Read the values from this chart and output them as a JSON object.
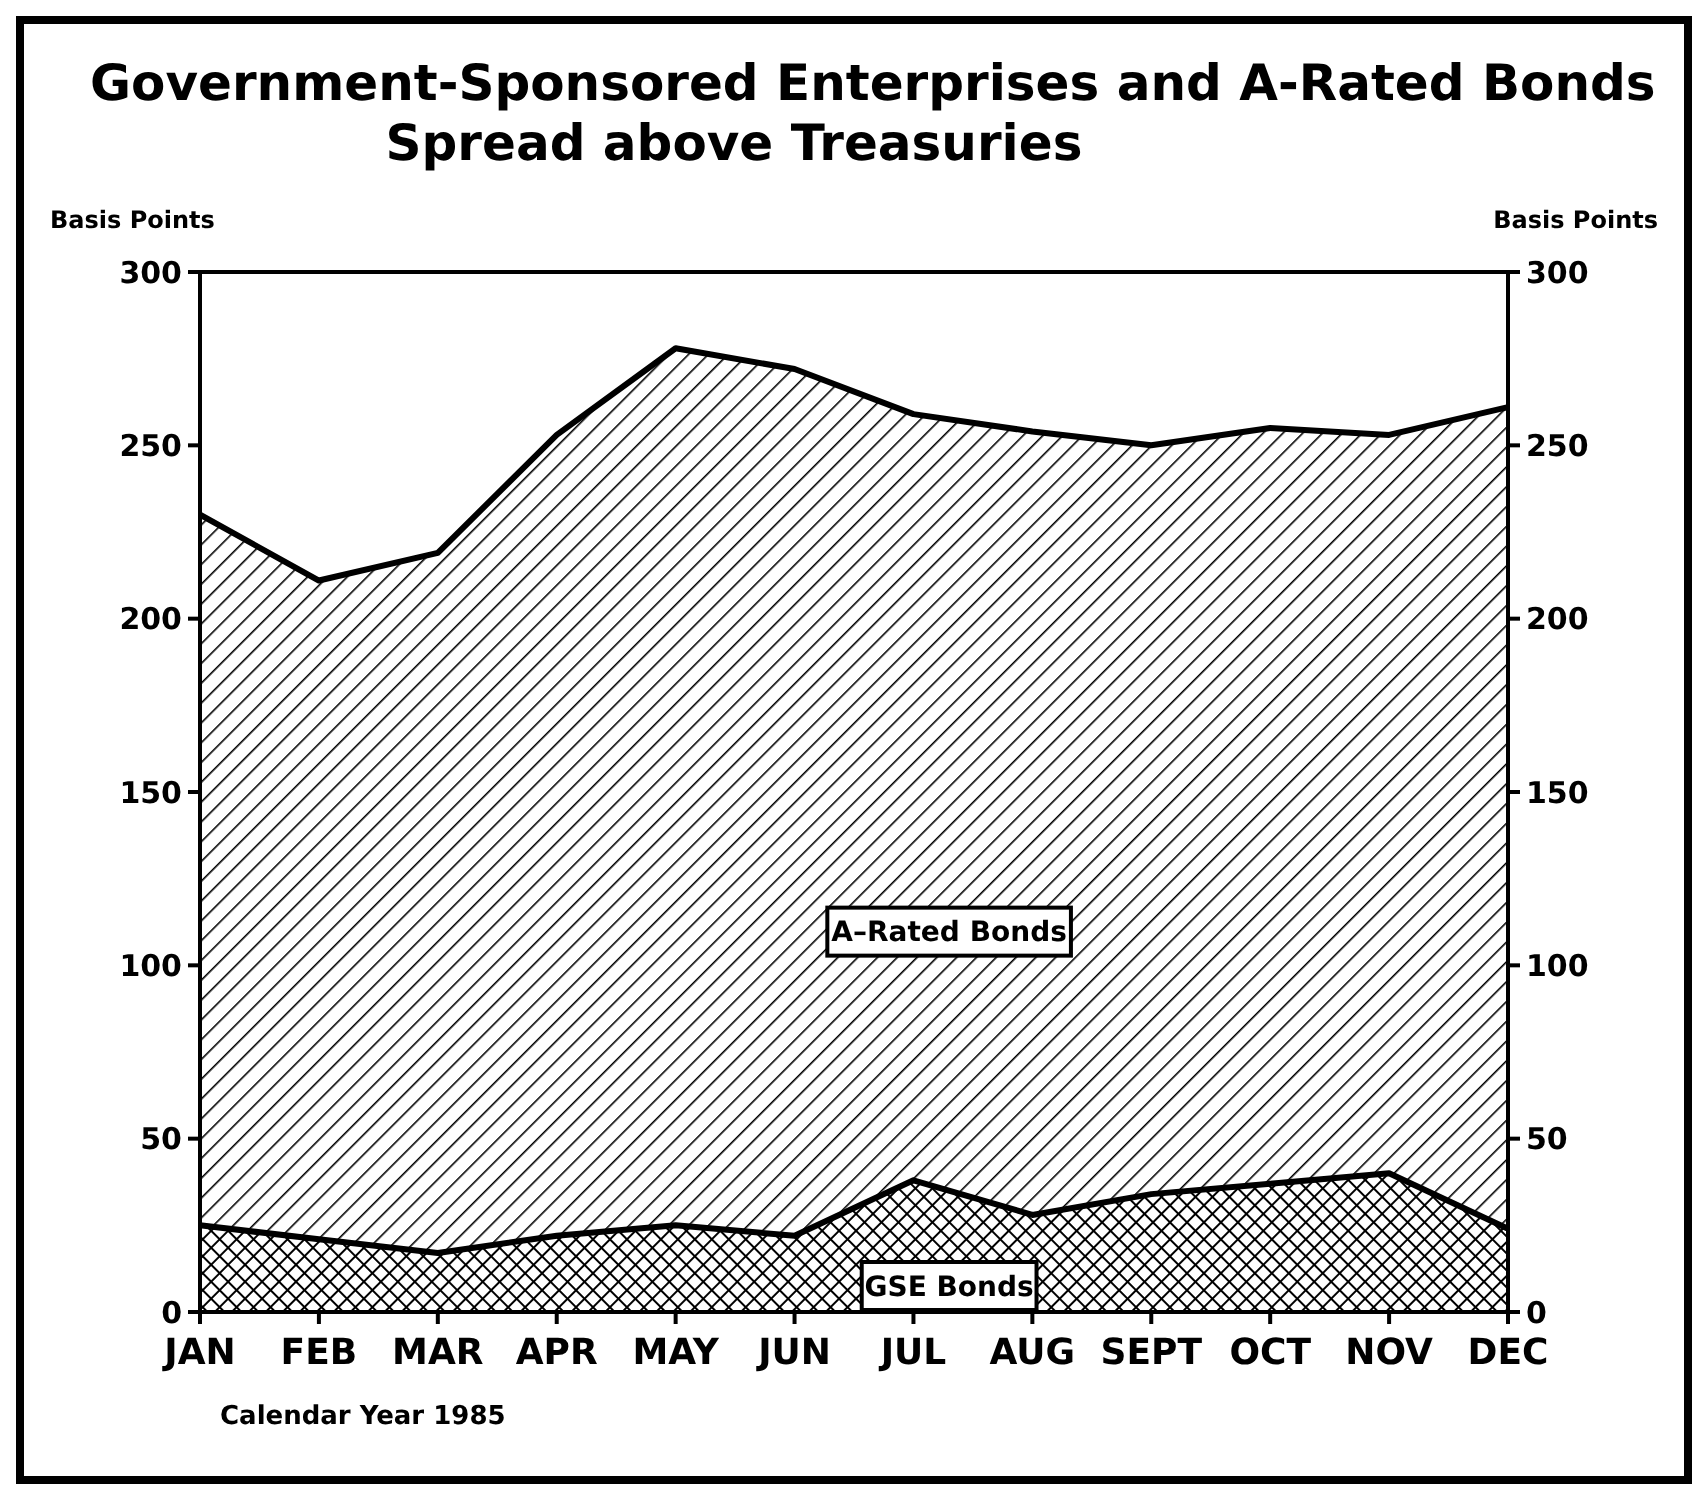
{
  "chart_data": {
    "type": "area",
    "title": "Government-Sponsored Enterprises and A-Rated Bonds",
    "subtitle": "Spread above Treasuries",
    "xlabel": "Calendar Year 1985",
    "ylabel": "Basis Points",
    "y2label": "Basis Points",
    "categories": [
      "JAN",
      "FEB",
      "MAR",
      "APR",
      "MAY",
      "JUN",
      "JUL",
      "AUG",
      "SEPT",
      "OCT",
      "NOV",
      "DEC"
    ],
    "series": [
      {
        "name": "A–Rated Bonds",
        "color": "#000000",
        "values": [
          230,
          211,
          219,
          253,
          278,
          272,
          259,
          254,
          250,
          255,
          253,
          261
        ]
      },
      {
        "name": "GSE Bonds",
        "color": "#000000",
        "values": [
          25,
          21,
          17,
          22,
          25,
          22,
          38,
          28,
          34,
          37,
          40,
          24
        ]
      }
    ],
    "ylim": [
      0,
      300
    ],
    "yticks": [
      0,
      50,
      100,
      150,
      200,
      250,
      300
    ],
    "y2lim": [
      0,
      300
    ],
    "y2ticks": [
      0,
      50,
      100,
      150,
      200,
      250,
      300
    ],
    "grid": false,
    "legend": false
  }
}
